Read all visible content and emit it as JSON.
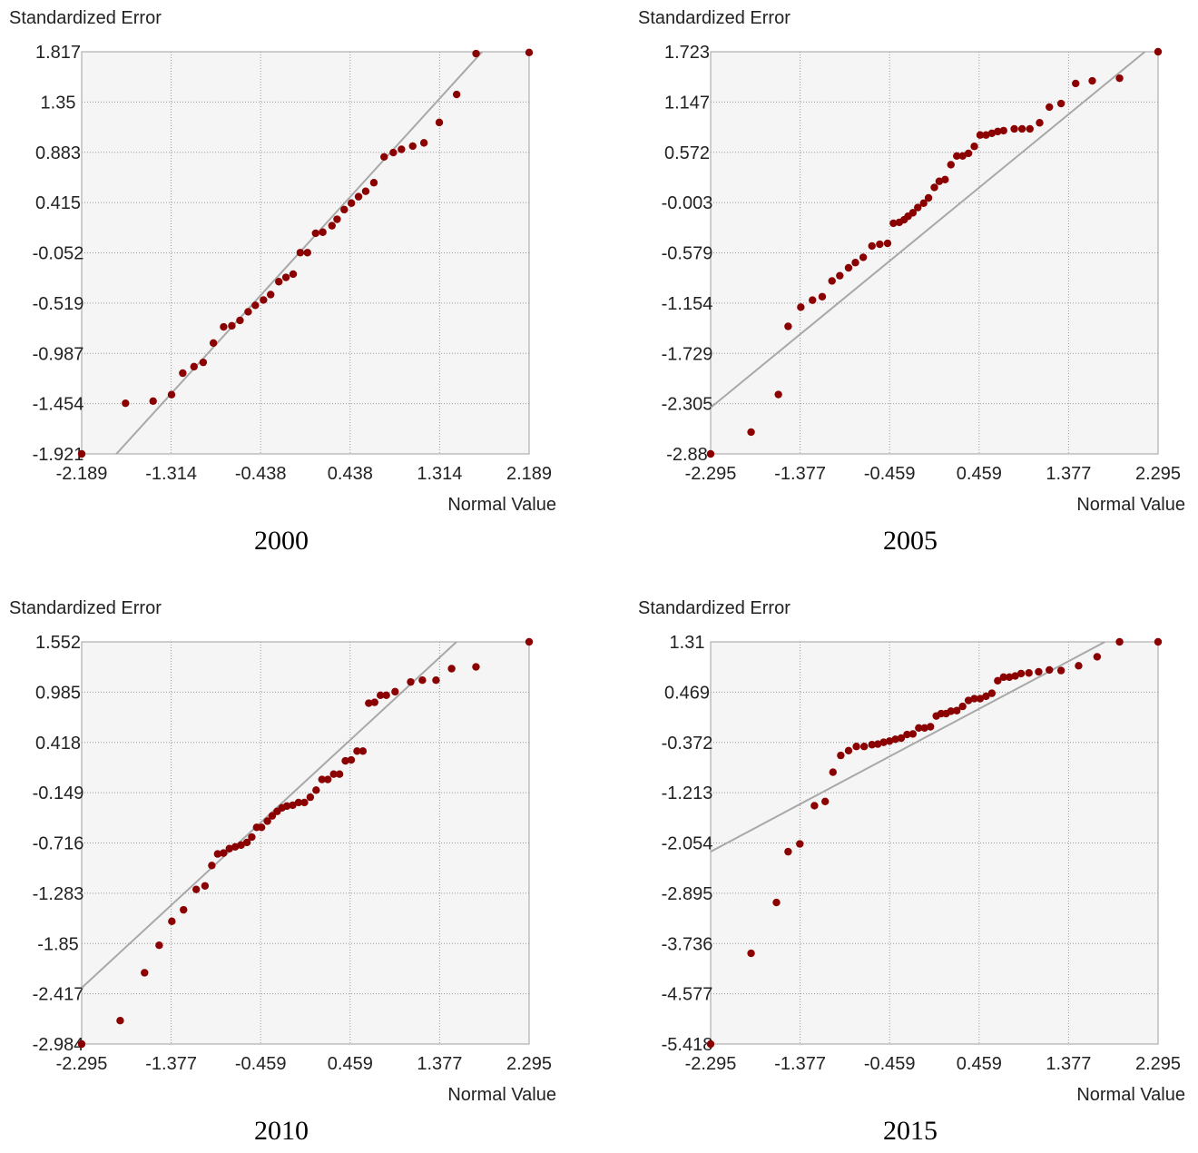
{
  "chart_data": [
    {
      "type": "scatter",
      "title": "",
      "caption": "2000",
      "xlabel": "Normal Value",
      "ylabel": "Standardized Error",
      "xlim": [
        -2.189,
        2.189
      ],
      "ylim": [
        -1.921,
        1.817
      ],
      "x_ticks": [
        "-2.189",
        "-1.314",
        "-0.438",
        "0.438",
        "1.314",
        "2.189"
      ],
      "y_ticks": [
        "1.817",
        "1.35",
        "0.883",
        "0.415",
        "-0.052",
        "-0.519",
        "-0.987",
        "-1.454",
        "-1.921"
      ],
      "grid": true,
      "reference_line": [
        [
          -1.85,
          -1.921
        ],
        [
          1.73,
          1.817
        ]
      ],
      "points": [
        [
          -2.189,
          -1.921
        ],
        [
          -1.76,
          -1.45
        ],
        [
          -1.49,
          -1.43
        ],
        [
          -1.31,
          -1.37
        ],
        [
          -1.2,
          -1.17
        ],
        [
          -1.09,
          -1.11
        ],
        [
          -1.0,
          -1.07
        ],
        [
          -0.9,
          -0.89
        ],
        [
          -0.8,
          -0.74
        ],
        [
          -0.72,
          -0.73
        ],
        [
          -0.64,
          -0.68
        ],
        [
          -0.56,
          -0.6
        ],
        [
          -0.49,
          -0.54
        ],
        [
          -0.41,
          -0.49
        ],
        [
          -0.34,
          -0.44
        ],
        [
          -0.26,
          -0.32
        ],
        [
          -0.19,
          -0.28
        ],
        [
          -0.12,
          -0.25
        ],
        [
          -0.05,
          -0.05
        ],
        [
          0.02,
          -0.05
        ],
        [
          0.1,
          0.13
        ],
        [
          0.17,
          0.14
        ],
        [
          0.26,
          0.2
        ],
        [
          0.31,
          0.26
        ],
        [
          0.38,
          0.35
        ],
        [
          0.45,
          0.41
        ],
        [
          0.52,
          0.47
        ],
        [
          0.59,
          0.52
        ],
        [
          0.67,
          0.6
        ],
        [
          0.77,
          0.84
        ],
        [
          0.86,
          0.88
        ],
        [
          0.94,
          0.91
        ],
        [
          1.05,
          0.94
        ],
        [
          1.16,
          0.97
        ],
        [
          1.31,
          1.16
        ],
        [
          1.48,
          1.42
        ],
        [
          1.67,
          1.8
        ],
        [
          2.189,
          1.81
        ]
      ]
    },
    {
      "type": "scatter",
      "title": "",
      "caption": "2005",
      "xlabel": "Normal Value",
      "ylabel": "Standardized Error",
      "xlim": [
        -2.295,
        2.295
      ],
      "ylim": [
        -2.88,
        1.723
      ],
      "x_ticks": [
        "-2.295",
        "-1.377",
        "-0.459",
        "0.459",
        "1.377",
        "2.295"
      ],
      "y_ticks": [
        "1.723",
        "1.147",
        "0.572",
        "-0.003",
        "-0.579",
        "-1.154",
        "-1.729",
        "-2.305",
        "-2.88"
      ],
      "grid": true,
      "reference_line": [
        [
          -2.295,
          -2.35
        ],
        [
          2.16,
          1.723
        ]
      ],
      "points": [
        [
          -2.295,
          -2.88
        ],
        [
          -1.88,
          -2.63
        ],
        [
          -1.6,
          -2.2
        ],
        [
          -1.5,
          -1.42
        ],
        [
          -1.37,
          -1.2
        ],
        [
          -1.25,
          -1.12
        ],
        [
          -1.15,
          -1.08
        ],
        [
          -1.05,
          -0.9
        ],
        [
          -0.97,
          -0.84
        ],
        [
          -0.88,
          -0.75
        ],
        [
          -0.81,
          -0.69
        ],
        [
          -0.73,
          -0.63
        ],
        [
          -0.64,
          -0.5
        ],
        [
          -0.56,
          -0.48
        ],
        [
          -0.48,
          -0.47
        ],
        [
          -0.42,
          -0.24
        ],
        [
          -0.36,
          -0.23
        ],
        [
          -0.31,
          -0.2
        ],
        [
          -0.27,
          -0.16
        ],
        [
          -0.22,
          -0.12
        ],
        [
          -0.17,
          -0.06
        ],
        [
          -0.11,
          -0.01
        ],
        [
          -0.06,
          0.05
        ],
        [
          0.0,
          0.17
        ],
        [
          0.05,
          0.24
        ],
        [
          0.11,
          0.26
        ],
        [
          0.17,
          0.43
        ],
        [
          0.23,
          0.53
        ],
        [
          0.29,
          0.53
        ],
        [
          0.35,
          0.56
        ],
        [
          0.41,
          0.64
        ],
        [
          0.47,
          0.77
        ],
        [
          0.53,
          0.77
        ],
        [
          0.59,
          0.79
        ],
        [
          0.65,
          0.81
        ],
        [
          0.71,
          0.82
        ],
        [
          0.82,
          0.84
        ],
        [
          0.9,
          0.84
        ],
        [
          0.98,
          0.84
        ],
        [
          1.08,
          0.91
        ],
        [
          1.18,
          1.09
        ],
        [
          1.3,
          1.13
        ],
        [
          1.45,
          1.36
        ],
        [
          1.62,
          1.39
        ],
        [
          1.9,
          1.42
        ],
        [
          2.295,
          1.723
        ]
      ]
    },
    {
      "type": "scatter",
      "title": "",
      "caption": "2010",
      "xlabel": "Normal Value",
      "ylabel": "Standardized Error",
      "xlim": [
        -2.295,
        2.295
      ],
      "ylim": [
        -2.984,
        1.552
      ],
      "x_ticks": [
        "-2.295",
        "-1.377",
        "-0.459",
        "0.459",
        "1.377",
        "2.295"
      ],
      "y_ticks": [
        "1.552",
        "0.985",
        "0.418",
        "-0.149",
        "-0.716",
        "-1.283",
        "-1.85",
        "-2.417",
        "-2.984"
      ],
      "grid": true,
      "reference_line": [
        [
          -2.295,
          -2.35
        ],
        [
          1.55,
          1.552
        ]
      ],
      "points": [
        [
          -2.295,
          -2.984
        ],
        [
          -1.9,
          -2.72
        ],
        [
          -1.65,
          -2.18
        ],
        [
          -1.5,
          -1.87
        ],
        [
          -1.37,
          -1.6
        ],
        [
          -1.25,
          -1.47
        ],
        [
          -1.12,
          -1.24
        ],
        [
          -1.03,
          -1.2
        ],
        [
          -0.96,
          -0.97
        ],
        [
          -0.9,
          -0.84
        ],
        [
          -0.84,
          -0.83
        ],
        [
          -0.78,
          -0.78
        ],
        [
          -0.72,
          -0.76
        ],
        [
          -0.66,
          -0.74
        ],
        [
          -0.6,
          -0.71
        ],
        [
          -0.55,
          -0.65
        ],
        [
          -0.5,
          -0.54
        ],
        [
          -0.45,
          -0.54
        ],
        [
          -0.39,
          -0.47
        ],
        [
          -0.34,
          -0.41
        ],
        [
          -0.29,
          -0.36
        ],
        [
          -0.24,
          -0.32
        ],
        [
          -0.19,
          -0.3
        ],
        [
          -0.13,
          -0.29
        ],
        [
          -0.07,
          -0.26
        ],
        [
          -0.01,
          -0.26
        ],
        [
          0.05,
          -0.2
        ],
        [
          0.11,
          -0.12
        ],
        [
          0.17,
          0.0
        ],
        [
          0.23,
          0.0
        ],
        [
          0.29,
          0.06
        ],
        [
          0.35,
          0.06
        ],
        [
          0.41,
          0.21
        ],
        [
          0.47,
          0.22
        ],
        [
          0.53,
          0.32
        ],
        [
          0.59,
          0.32
        ],
        [
          0.65,
          0.86
        ],
        [
          0.71,
          0.87
        ],
        [
          0.77,
          0.95
        ],
        [
          0.83,
          0.95
        ],
        [
          0.92,
          0.99
        ],
        [
          1.08,
          1.1
        ],
        [
          1.2,
          1.12
        ],
        [
          1.34,
          1.12
        ],
        [
          1.5,
          1.25
        ],
        [
          1.75,
          1.27
        ],
        [
          2.295,
          1.552
        ]
      ]
    },
    {
      "type": "scatter",
      "title": "",
      "caption": "2015",
      "xlabel": "Normal Value",
      "ylabel": "Standardized Error",
      "xlim": [
        -2.295,
        2.295
      ],
      "ylim": [
        -5.418,
        1.31
      ],
      "x_ticks": [
        "-2.295",
        "-1.377",
        "-0.459",
        "0.459",
        "1.377",
        "2.295"
      ],
      "y_ticks": [
        "1.31",
        "0.469",
        "-0.372",
        "-1.213",
        "-2.054",
        "-2.895",
        "-3.736",
        "-4.577",
        "-5.418"
      ],
      "grid": true,
      "reference_line": [
        [
          -2.295,
          -2.2
        ],
        [
          1.75,
          1.31
        ]
      ],
      "points": [
        [
          -2.295,
          -5.418
        ],
        [
          -1.88,
          -3.9
        ],
        [
          -1.62,
          -3.05
        ],
        [
          -1.5,
          -2.2
        ],
        [
          -1.38,
          -2.07
        ],
        [
          -1.23,
          -1.43
        ],
        [
          -1.12,
          -1.36
        ],
        [
          -1.04,
          -0.87
        ],
        [
          -0.96,
          -0.59
        ],
        [
          -0.88,
          -0.51
        ],
        [
          -0.8,
          -0.44
        ],
        [
          -0.72,
          -0.44
        ],
        [
          -0.64,
          -0.41
        ],
        [
          -0.58,
          -0.4
        ],
        [
          -0.52,
          -0.37
        ],
        [
          -0.46,
          -0.35
        ],
        [
          -0.4,
          -0.32
        ],
        [
          -0.34,
          -0.3
        ],
        [
          -0.28,
          -0.24
        ],
        [
          -0.22,
          -0.23
        ],
        [
          -0.16,
          -0.13
        ],
        [
          -0.1,
          -0.13
        ],
        [
          -0.04,
          -0.11
        ],
        [
          0.02,
          0.07
        ],
        [
          0.07,
          0.11
        ],
        [
          0.12,
          0.11
        ],
        [
          0.17,
          0.15
        ],
        [
          0.23,
          0.16
        ],
        [
          0.29,
          0.23
        ],
        [
          0.35,
          0.33
        ],
        [
          0.41,
          0.36
        ],
        [
          0.47,
          0.36
        ],
        [
          0.53,
          0.4
        ],
        [
          0.59,
          0.45
        ],
        [
          0.65,
          0.66
        ],
        [
          0.71,
          0.72
        ],
        [
          0.77,
          0.72
        ],
        [
          0.83,
          0.74
        ],
        [
          0.89,
          0.78
        ],
        [
          0.97,
          0.79
        ],
        [
          1.07,
          0.81
        ],
        [
          1.18,
          0.84
        ],
        [
          1.3,
          0.83
        ],
        [
          1.48,
          0.91
        ],
        [
          1.67,
          1.06
        ],
        [
          1.9,
          1.31
        ],
        [
          2.295,
          1.31
        ]
      ]
    }
  ]
}
